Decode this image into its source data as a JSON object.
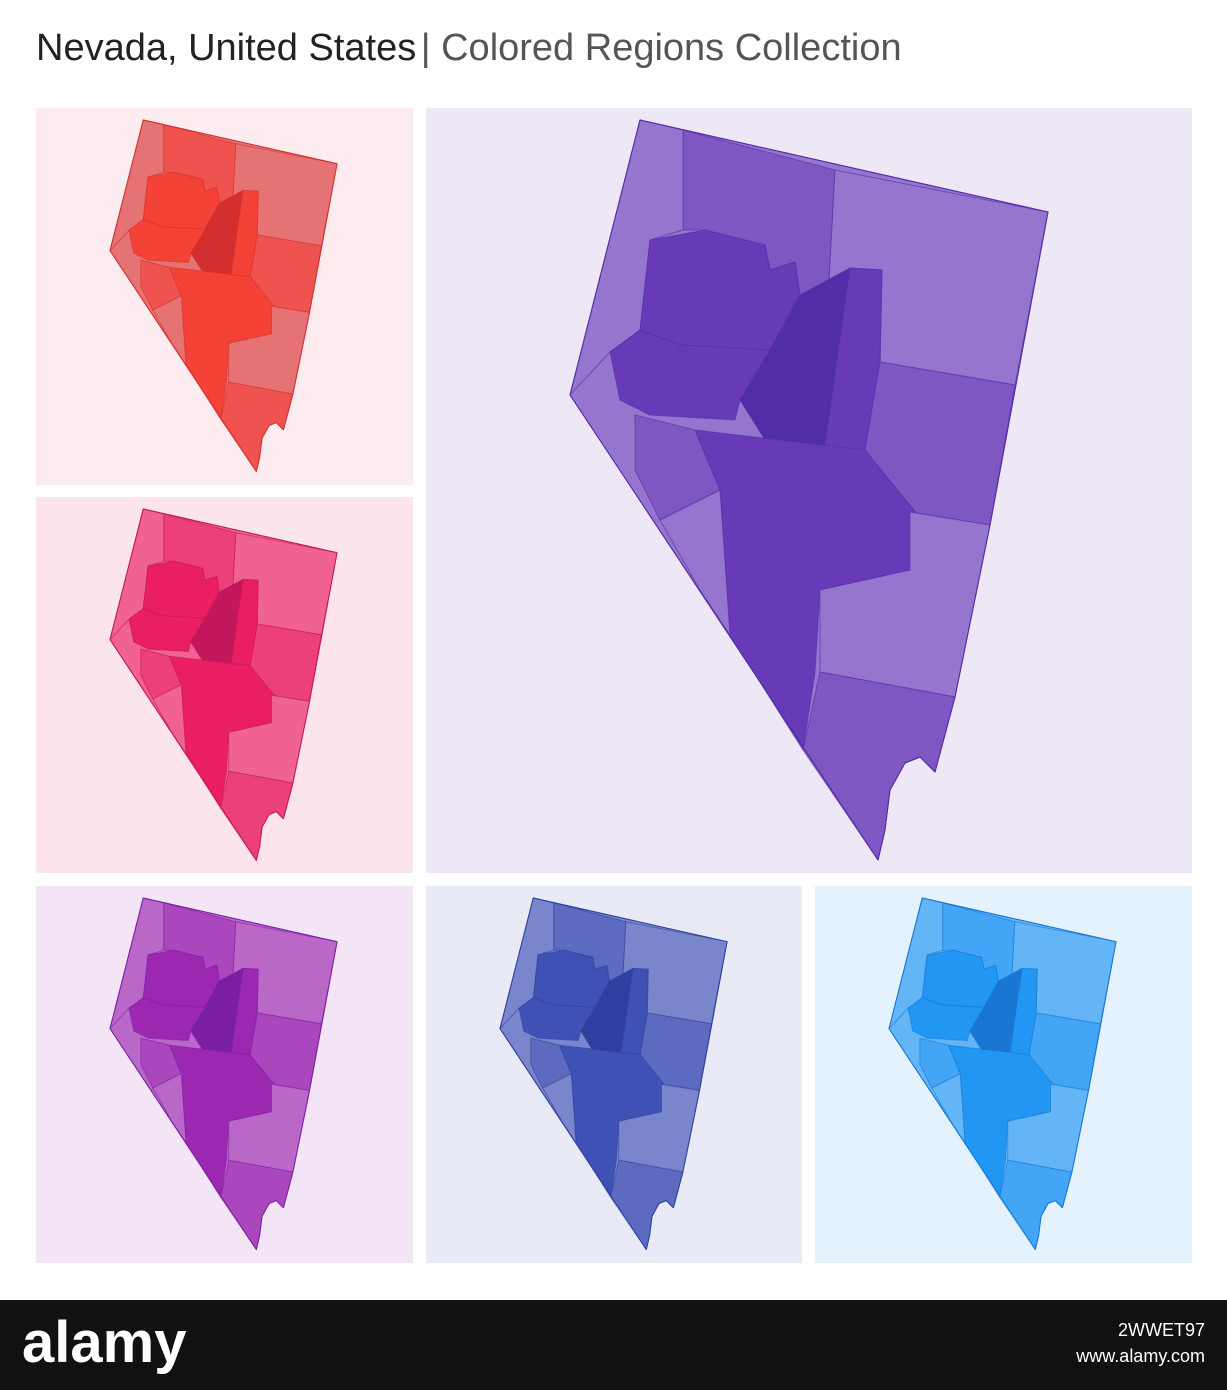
{
  "header": {
    "title": "Nevada, United States",
    "subtitle": "| Colored Regions Collection"
  },
  "footer": {
    "brand": "alamy",
    "image_id": "2WWET97",
    "url": "www.alamy.com"
  }
}
